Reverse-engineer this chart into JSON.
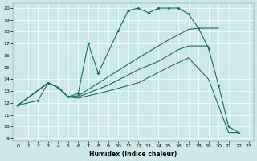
{
  "xlabel": "Humidex (Indice chaleur)",
  "bg_color": "#cde8e8",
  "line_color": "#1a6b6b",
  "xlim": [
    -0.5,
    23.5
  ],
  "ylim": [
    8.8,
    20.4
  ],
  "xticks": [
    0,
    1,
    2,
    3,
    4,
    5,
    6,
    7,
    8,
    9,
    10,
    11,
    12,
    13,
    14,
    15,
    16,
    17,
    18,
    19,
    20,
    21,
    22,
    23
  ],
  "yticks": [
    9,
    10,
    11,
    12,
    13,
    14,
    15,
    16,
    17,
    18,
    19,
    20
  ],
  "line1_x": [
    0,
    2,
    3,
    4,
    5,
    6,
    7,
    8,
    10,
    11,
    12,
    13,
    14,
    15,
    16,
    17,
    18,
    19,
    20,
    21,
    22
  ],
  "line1_y": [
    11.8,
    12.2,
    13.7,
    13.3,
    12.5,
    12.8,
    17.0,
    14.5,
    18.1,
    19.8,
    20.0,
    19.6,
    20.0,
    20.0,
    20.0,
    19.5,
    18.3,
    16.6,
    13.5,
    10.0,
    9.5
  ],
  "line2_x": [
    0,
    3,
    4,
    5,
    6,
    9,
    12,
    15,
    17,
    18,
    19,
    20
  ],
  "line2_y": [
    11.8,
    13.7,
    13.3,
    12.5,
    12.6,
    14.2,
    15.8,
    17.3,
    18.2,
    18.3,
    18.3,
    18.3
  ],
  "line3_x": [
    0,
    3,
    4,
    5,
    6,
    9,
    12,
    14,
    16,
    17,
    18,
    19
  ],
  "line3_y": [
    11.8,
    13.7,
    13.3,
    12.5,
    12.5,
    13.5,
    14.8,
    15.5,
    16.5,
    16.8,
    16.8,
    16.8
  ],
  "line4_x": [
    0,
    3,
    4,
    5,
    6,
    9,
    12,
    15,
    17,
    19,
    21,
    22
  ],
  "line4_y": [
    11.8,
    13.7,
    13.3,
    12.5,
    12.4,
    13.0,
    13.7,
    15.0,
    15.8,
    14.0,
    9.5,
    9.5
  ]
}
